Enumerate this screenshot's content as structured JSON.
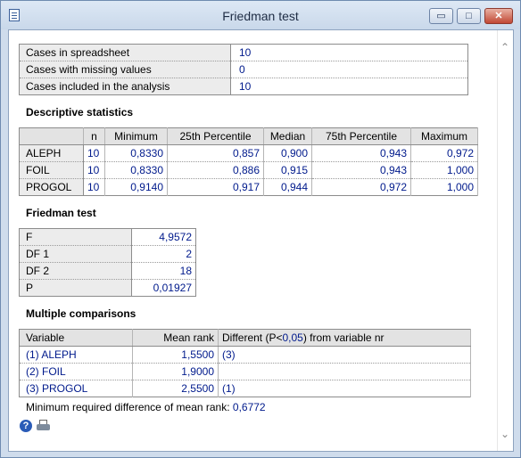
{
  "window": {
    "title": "Friedman test",
    "controls": {
      "minimize": "▭",
      "maximize": "□",
      "close": "✕"
    }
  },
  "icons": {
    "app": "document-icon",
    "help": "help-icon",
    "print": "print-icon"
  },
  "cases": [
    {
      "label": "Cases in spreadsheet",
      "value": "10"
    },
    {
      "label": "Cases with missing values",
      "value": "0"
    },
    {
      "label": "Cases included in the analysis",
      "value": "10"
    }
  ],
  "descriptive": {
    "heading": "Descriptive statistics",
    "headers": [
      "",
      "n",
      "Minimum",
      "25th Percentile",
      "Median",
      "75th Percentile",
      "Maximum"
    ],
    "rows": [
      {
        "label": "ALEPH",
        "n": "10",
        "min": "0,8330",
        "p25": "0,857",
        "median": "0,900",
        "p75": "0,943",
        "max": "0,972"
      },
      {
        "label": "FOIL",
        "n": "10",
        "min": "0,8330",
        "p25": "0,886",
        "median": "0,915",
        "p75": "0,943",
        "max": "1,000"
      },
      {
        "label": "PROGOL",
        "n": "10",
        "min": "0,9140",
        "p25": "0,917",
        "median": "0,944",
        "p75": "0,972",
        "max": "1,000"
      }
    ]
  },
  "friedman": {
    "heading": "Friedman test",
    "rows": [
      {
        "label": "F",
        "value": "4,9572"
      },
      {
        "label": "DF 1",
        "value": "2"
      },
      {
        "label": "DF 2",
        "value": "18"
      },
      {
        "label": "P",
        "value": "0,01927"
      }
    ]
  },
  "comparisons": {
    "heading": "Multiple comparisons",
    "headers": {
      "variable": "Variable",
      "mean_rank": "Mean rank",
      "different_prefix": "Different (P<",
      "different_alpha": "0,05",
      "different_suffix": ") from variable nr"
    },
    "rows": [
      {
        "variable": "(1) ALEPH",
        "mean_rank": "1,5500",
        "different": "(3)"
      },
      {
        "variable": "(2) FOIL",
        "mean_rank": "1,9000",
        "different": ""
      },
      {
        "variable": "(3) PROGOL",
        "mean_rank": "2,5500",
        "different": "(1)"
      }
    ],
    "min_diff_label": "Minimum required difference of mean rank:",
    "min_diff_value": "0,6772"
  },
  "colors": {
    "value_text": "#001a8c",
    "label_bg": "#ececec",
    "header_bg": "#e3e3e3",
    "frame": "#cfdcec"
  }
}
